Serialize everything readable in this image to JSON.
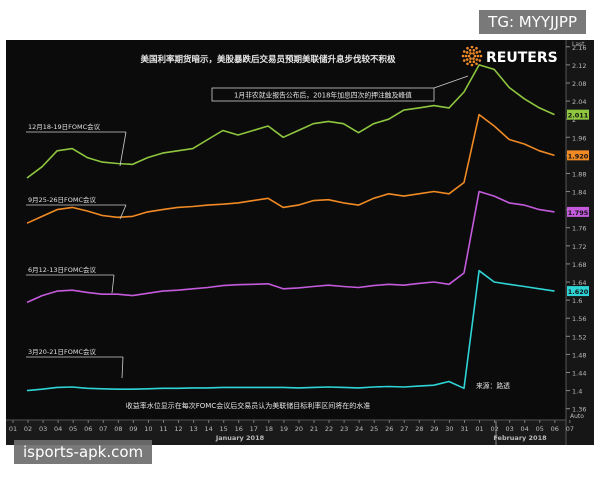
{
  "chart_data": {
    "type": "line",
    "title": "美国利率期货暗示，美股暴跌后交易员预期美联储升息步伐较不积极",
    "brand": "REUTERS",
    "source_note": "来源：路透",
    "footnote": "收益率水位显示在每次FOMC会议后交易员认为美联储目标利率区间将在的水准",
    "annotation": "1月非农就业报告公布后，2018年加息四次的押注触及峰值",
    "axis_corner_label": "Last",
    "x_tick_labels": [
      "01",
      "02",
      "03",
      "04",
      "05",
      "06",
      "07",
      "08",
      "09",
      "10",
      "11",
      "12",
      "13",
      "14",
      "15",
      "16",
      "17",
      "18",
      "19",
      "20",
      "21",
      "22",
      "23",
      "24",
      "25",
      "26",
      "27",
      "28",
      "29",
      "30",
      "31",
      "01",
      "02",
      "03",
      "04",
      "05",
      "06",
      "07"
    ],
    "x_month_labels": [
      {
        "label": "January 2018"
      },
      {
        "label": "February 2018"
      }
    ],
    "y_ticks": [
      1.36,
      1.4,
      1.44,
      1.48,
      1.52,
      1.56,
      1.6,
      1.64,
      1.68,
      1.72,
      1.76,
      1.8,
      1.84,
      1.88,
      1.92,
      1.96,
      2,
      2.04,
      2.08,
      2.12,
      2.16
    ],
    "y_corner_label": "Auto",
    "ylim": [
      1.335,
      2.175
    ],
    "grid": false,
    "x_index": [
      0,
      1,
      2,
      3,
      4,
      5,
      6,
      7,
      8,
      9,
      10,
      11,
      12,
      13,
      14,
      15,
      16,
      17,
      18,
      19,
      20,
      21,
      22,
      23,
      24,
      25,
      26,
      27,
      28,
      29,
      30,
      31,
      32,
      33,
      34,
      35
    ],
    "series": [
      {
        "name": "12月18-19日FOMC会议",
        "color": "#8ec63f",
        "last": "2.011",
        "values": [
          1.87,
          1.895,
          1.93,
          1.935,
          1.915,
          1.905,
          1.902,
          1.9,
          1.915,
          1.925,
          1.93,
          1.935,
          1.955,
          1.975,
          1.965,
          1.975,
          1.985,
          1.96,
          1.975,
          1.99,
          1.995,
          1.99,
          1.97,
          1.99,
          2.0,
          2.02,
          2.025,
          2.03,
          2.025,
          2.06,
          2.12,
          2.11,
          2.07,
          2.045,
          2.025,
          2.01
        ]
      },
      {
        "name": "9月25-26日FOMC会议",
        "color": "#f08a24",
        "last": "1.920",
        "values": [
          1.77,
          1.785,
          1.8,
          1.805,
          1.797,
          1.787,
          1.783,
          1.785,
          1.795,
          1.8,
          1.805,
          1.807,
          1.81,
          1.812,
          1.815,
          1.82,
          1.825,
          1.805,
          1.81,
          1.82,
          1.822,
          1.815,
          1.81,
          1.825,
          1.835,
          1.83,
          1.835,
          1.84,
          1.835,
          1.86,
          2.01,
          1.985,
          1.955,
          1.945,
          1.93,
          1.92
        ]
      },
      {
        "name": "6月12-13日FOMC会议",
        "color": "#c45bdc",
        "last": "1.795",
        "values": [
          1.595,
          1.61,
          1.62,
          1.622,
          1.617,
          1.613,
          1.613,
          1.61,
          1.615,
          1.62,
          1.622,
          1.625,
          1.628,
          1.632,
          1.634,
          1.635,
          1.636,
          1.625,
          1.627,
          1.63,
          1.633,
          1.63,
          1.628,
          1.632,
          1.635,
          1.633,
          1.637,
          1.64,
          1.635,
          1.66,
          1.84,
          1.83,
          1.815,
          1.81,
          1.8,
          1.795
        ]
      },
      {
        "name": "3月20-21日FOMC会议",
        "color": "#2fd4d6",
        "last": "1.620",
        "values": [
          1.4,
          1.403,
          1.407,
          1.408,
          1.405,
          1.404,
          1.403,
          1.403,
          1.404,
          1.405,
          1.405,
          1.406,
          1.406,
          1.407,
          1.407,
          1.407,
          1.407,
          1.407,
          1.406,
          1.407,
          1.408,
          1.407,
          1.406,
          1.408,
          1.409,
          1.408,
          1.41,
          1.412,
          1.42,
          1.405,
          1.665,
          1.64,
          1.635,
          1.63,
          1.625,
          1.62
        ]
      }
    ]
  },
  "watermarks": {
    "top": "TG: MYYJJPP",
    "bottom": "isports-apk.com"
  }
}
